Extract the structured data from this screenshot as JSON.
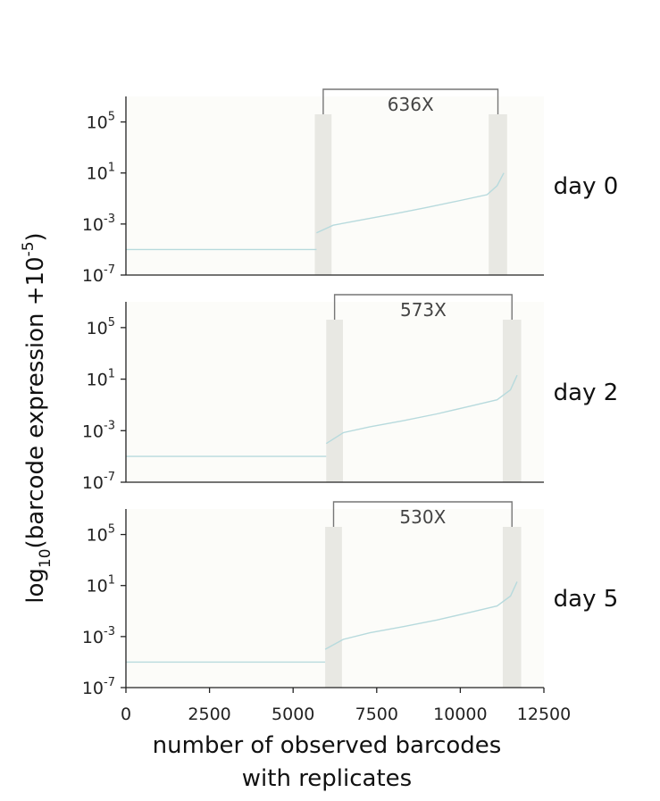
{
  "chart_data": [
    {
      "type": "line",
      "annotation": "day 0",
      "x_range": [
        0,
        12500
      ],
      "ylim": [
        1e-07,
        10000000.0
      ],
      "y_scale": "log",
      "y_ticks": [
        {
          "base": "10",
          "exp": "5"
        },
        {
          "base": "10",
          "exp": "1"
        },
        {
          "base": "10",
          "exp": "-3"
        },
        {
          "base": "10",
          "exp": "-7"
        }
      ],
      "fold_change_label": "636X",
      "highlight_bands_x": [
        [
          5650,
          6150
        ],
        [
          10850,
          11400
        ]
      ],
      "series": [
        {
          "x": [
            0,
            5700
          ],
          "y": [
            1e-05,
            1e-05
          ]
        },
        {
          "x": [
            5700,
            6200,
            7000,
            8000,
            9000,
            10000,
            10800,
            11100,
            11300
          ],
          "y": [
            0.0002,
            0.0008,
            0.002,
            0.006,
            0.02,
            0.07,
            0.2,
            1.0,
            10.0
          ]
        }
      ]
    },
    {
      "type": "line",
      "annotation": "day 2",
      "x_range": [
        0,
        12500
      ],
      "ylim": [
        1e-07,
        10000000.0
      ],
      "y_scale": "log",
      "y_ticks": [
        {
          "base": "10",
          "exp": "5"
        },
        {
          "base": "10",
          "exp": "1"
        },
        {
          "base": "10",
          "exp": "-3"
        },
        {
          "base": "10",
          "exp": "-7"
        }
      ],
      "fold_change_label": "573X",
      "highlight_bands_x": [
        [
          5990,
          6490
        ],
        [
          11270,
          11820
        ]
      ],
      "series": [
        {
          "x": [
            0,
            5990
          ],
          "y": [
            1e-05,
            1e-05
          ]
        },
        {
          "x": [
            5990,
            6500,
            7300,
            8300,
            9300,
            10300,
            11100,
            11500,
            11700
          ],
          "y": [
            0.0001,
            0.0007,
            0.002,
            0.006,
            0.02,
            0.08,
            0.25,
            1.5,
            20.0
          ]
        }
      ]
    },
    {
      "type": "line",
      "annotation": "day 5",
      "x_range": [
        0,
        12500
      ],
      "ylim": [
        1e-07,
        10000000.0
      ],
      "y_scale": "log",
      "y_ticks": [
        {
          "base": "10",
          "exp": "5"
        },
        {
          "base": "10",
          "exp": "1"
        },
        {
          "base": "10",
          "exp": "-3"
        },
        {
          "base": "10",
          "exp": "-7"
        }
      ],
      "fold_change_label": "530X",
      "highlight_bands_x": [
        [
          5960,
          6460
        ],
        [
          11270,
          11820
        ]
      ],
      "series": [
        {
          "x": [
            0,
            5960
          ],
          "y": [
            1e-05,
            1e-05
          ]
        },
        {
          "x": [
            5960,
            6500,
            7300,
            8300,
            9300,
            10300,
            11100,
            11500,
            11700
          ],
          "y": [
            0.0001,
            0.0006,
            0.002,
            0.006,
            0.02,
            0.08,
            0.25,
            1.5,
            20.0
          ]
        }
      ],
      "x_ticks": [
        "0",
        "2500",
        "5000",
        "7500",
        "10000",
        "12500"
      ],
      "xlabel_lines": [
        "number of observed barcodes",
        "with replicates"
      ]
    }
  ],
  "ylabel": {
    "prefix": "log",
    "subscript": "10",
    "middle": "(barcode expression +10",
    "superscript": "-5",
    "suffix": ")"
  },
  "colors": {
    "band": "#e8e8e3",
    "series_line": "#b7dadd",
    "bracket": "#777777",
    "axis": "#222222",
    "panel_bg": "#fcfcf9"
  }
}
